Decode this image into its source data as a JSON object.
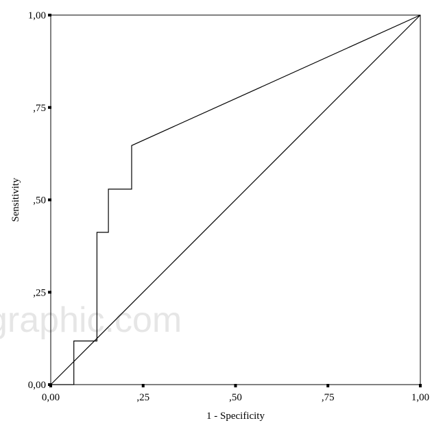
{
  "chart_data": {
    "type": "line",
    "title": "",
    "xlabel": "1 - Specificity",
    "ylabel": "Sensitivity",
    "xlim": [
      0,
      1
    ],
    "ylim": [
      0,
      1
    ],
    "x_ticks": [
      0,
      0.25,
      0.5,
      0.75,
      1
    ],
    "x_tick_labels": [
      "0,00",
      ",25",
      ",50",
      ",75",
      "1,00"
    ],
    "y_ticks": [
      0,
      0.25,
      0.5,
      0.75,
      1
    ],
    "y_tick_labels": [
      "0,00",
      ",25",
      ",50",
      ",75",
      "1,00"
    ],
    "grid": false,
    "series": [
      {
        "role": "roc-curve",
        "color": "#000000",
        "points": [
          [
            0,
            0
          ],
          [
            0.0625,
            0
          ],
          [
            0.0625,
            0.118
          ],
          [
            0.125,
            0.118
          ],
          [
            0.125,
            0.412
          ],
          [
            0.156,
            0.412
          ],
          [
            0.156,
            0.529
          ],
          [
            0.219,
            0.529
          ],
          [
            0.219,
            0.647
          ],
          [
            1,
            1
          ]
        ]
      },
      {
        "role": "reference-line",
        "color": "#000000",
        "points": [
          [
            0,
            0
          ],
          [
            1,
            1
          ]
        ]
      }
    ]
  },
  "watermark": "graphic.com"
}
